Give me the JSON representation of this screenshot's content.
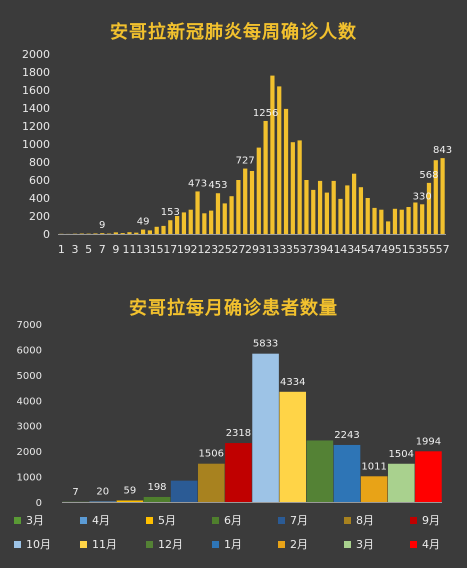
{
  "chart_data": [
    {
      "type": "bar",
      "title": "安哥拉新冠肺炎每周确诊人数",
      "xlabel": "",
      "ylabel": "",
      "ylim": [
        0,
        2000
      ],
      "yticks": [
        0,
        200,
        400,
        600,
        800,
        1000,
        1200,
        1400,
        1600,
        1800,
        2000
      ],
      "grid": false,
      "bar_color": "#f2c12e",
      "categories": [
        1,
        2,
        3,
        4,
        5,
        6,
        7,
        8,
        9,
        10,
        11,
        12,
        13,
        14,
        15,
        16,
        17,
        18,
        19,
        20,
        21,
        22,
        23,
        24,
        25,
        26,
        27,
        28,
        29,
        30,
        31,
        32,
        33,
        34,
        35,
        36,
        37,
        38,
        39,
        40,
        41,
        42,
        43,
        44,
        45,
        46,
        47,
        48,
        49,
        50,
        51,
        52,
        53,
        54,
        55,
        56,
        57
      ],
      "tick_labels": [
        "1",
        "3",
        "5",
        "7",
        "9",
        "11",
        "13",
        "15",
        "17",
        "19",
        "21",
        "23",
        "25",
        "27",
        "29",
        "31",
        "33",
        "35",
        "37",
        "39",
        "41",
        "43",
        "45",
        "47",
        "49",
        "51",
        "53",
        "55",
        "57"
      ],
      "values": [
        2,
        1,
        3,
        5,
        4,
        6,
        9,
        5,
        18,
        10,
        20,
        15,
        49,
        40,
        80,
        90,
        153,
        200,
        240,
        270,
        473,
        230,
        260,
        453,
        340,
        420,
        600,
        727,
        700,
        960,
        1256,
        1760,
        1640,
        1390,
        1020,
        1040,
        600,
        490,
        590,
        460,
        590,
        390,
        540,
        670,
        520,
        400,
        290,
        270,
        140,
        280,
        270,
        300,
        350,
        330,
        568,
        820,
        843
      ],
      "data_labels": [
        {
          "index": 6,
          "text": "9"
        },
        {
          "index": 12,
          "text": "49"
        },
        {
          "index": 16,
          "text": "153"
        },
        {
          "index": 20,
          "text": "473"
        },
        {
          "index": 23,
          "text": "453"
        },
        {
          "index": 27,
          "text": "727"
        },
        {
          "index": 30,
          "text": "1256"
        },
        {
          "index": 53,
          "text": "330"
        },
        {
          "index": 54,
          "text": "568"
        },
        {
          "index": 56,
          "text": "843"
        }
      ]
    },
    {
      "type": "bar",
      "title": "安哥拉每月确诊患者数量",
      "xlabel": "",
      "ylabel": "",
      "ylim": [
        0,
        7000
      ],
      "yticks": [
        0,
        1000,
        2000,
        3000,
        4000,
        5000,
        6000,
        7000
      ],
      "grid": false,
      "legend_position": "bottom",
      "series": [
        {
          "name": "3月",
          "value": 7,
          "color": "#5a9a35"
        },
        {
          "name": "4月",
          "value": 20,
          "color": "#5b9bd5"
        },
        {
          "name": "5月",
          "value": 59,
          "color": "#ffc000"
        },
        {
          "name": "6月",
          "value": 198,
          "color": "#4f7f2d"
        },
        {
          "name": "7月",
          "value": 840,
          "color": "#2b5b95"
        },
        {
          "name": "8月",
          "value": 1506,
          "color": "#a8821f"
        },
        {
          "name": "9月",
          "value": 2318,
          "color": "#c00000"
        },
        {
          "name": "10月",
          "value": 5833,
          "color": "#9dc3e6"
        },
        {
          "name": "11月",
          "value": 4334,
          "color": "#ffd447"
        },
        {
          "name": "12月",
          "value": 2420,
          "color": "#548235"
        },
        {
          "name": "1月",
          "value": 2243,
          "color": "#2e75b6"
        },
        {
          "name": "2月",
          "value": 1011,
          "color": "#e8a317"
        },
        {
          "name": "3月",
          "value": 1504,
          "color": "#a9d18e"
        },
        {
          "name": "4月",
          "value": 1994,
          "color": "#ff0000"
        }
      ],
      "data_labels": [
        {
          "index": 0,
          "text": "7"
        },
        {
          "index": 1,
          "text": "20"
        },
        {
          "index": 2,
          "text": "59"
        },
        {
          "index": 3,
          "text": "198"
        },
        {
          "index": 5,
          "text": "1506"
        },
        {
          "index": 6,
          "text": "2318"
        },
        {
          "index": 7,
          "text": "5833"
        },
        {
          "index": 8,
          "text": "4334"
        },
        {
          "index": 10,
          "text": "2243"
        },
        {
          "index": 11,
          "text": "1011"
        },
        {
          "index": 12,
          "text": "1504"
        },
        {
          "index": 13,
          "text": "1994"
        }
      ]
    }
  ]
}
